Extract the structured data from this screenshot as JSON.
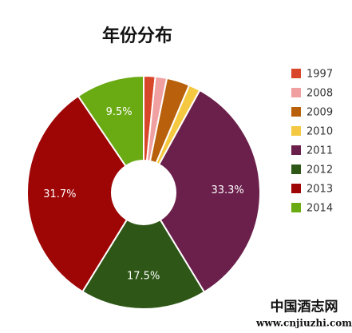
{
  "chart_data": {
    "type": "donut",
    "title": "年份分布",
    "categories": [
      "1997",
      "2008",
      "2009",
      "2010",
      "2011",
      "2012",
      "2013",
      "2014"
    ],
    "values": [
      1.6,
      1.6,
      3.2,
      1.6,
      33.3,
      17.5,
      31.7,
      9.5
    ],
    "value_labels": [
      null,
      null,
      null,
      null,
      "33.3%",
      "17.5%",
      "31.7%",
      "9.5%"
    ],
    "colors": [
      "#d9472b",
      "#f0a0a0",
      "#b8600b",
      "#f5c842",
      "#6b1f4b",
      "#2e5717",
      "#9e0505",
      "#6aaa12"
    ],
    "legend": "right"
  },
  "watermark": {
    "name": "中国酒志网",
    "url": "www.cnjiuzhi.com"
  }
}
